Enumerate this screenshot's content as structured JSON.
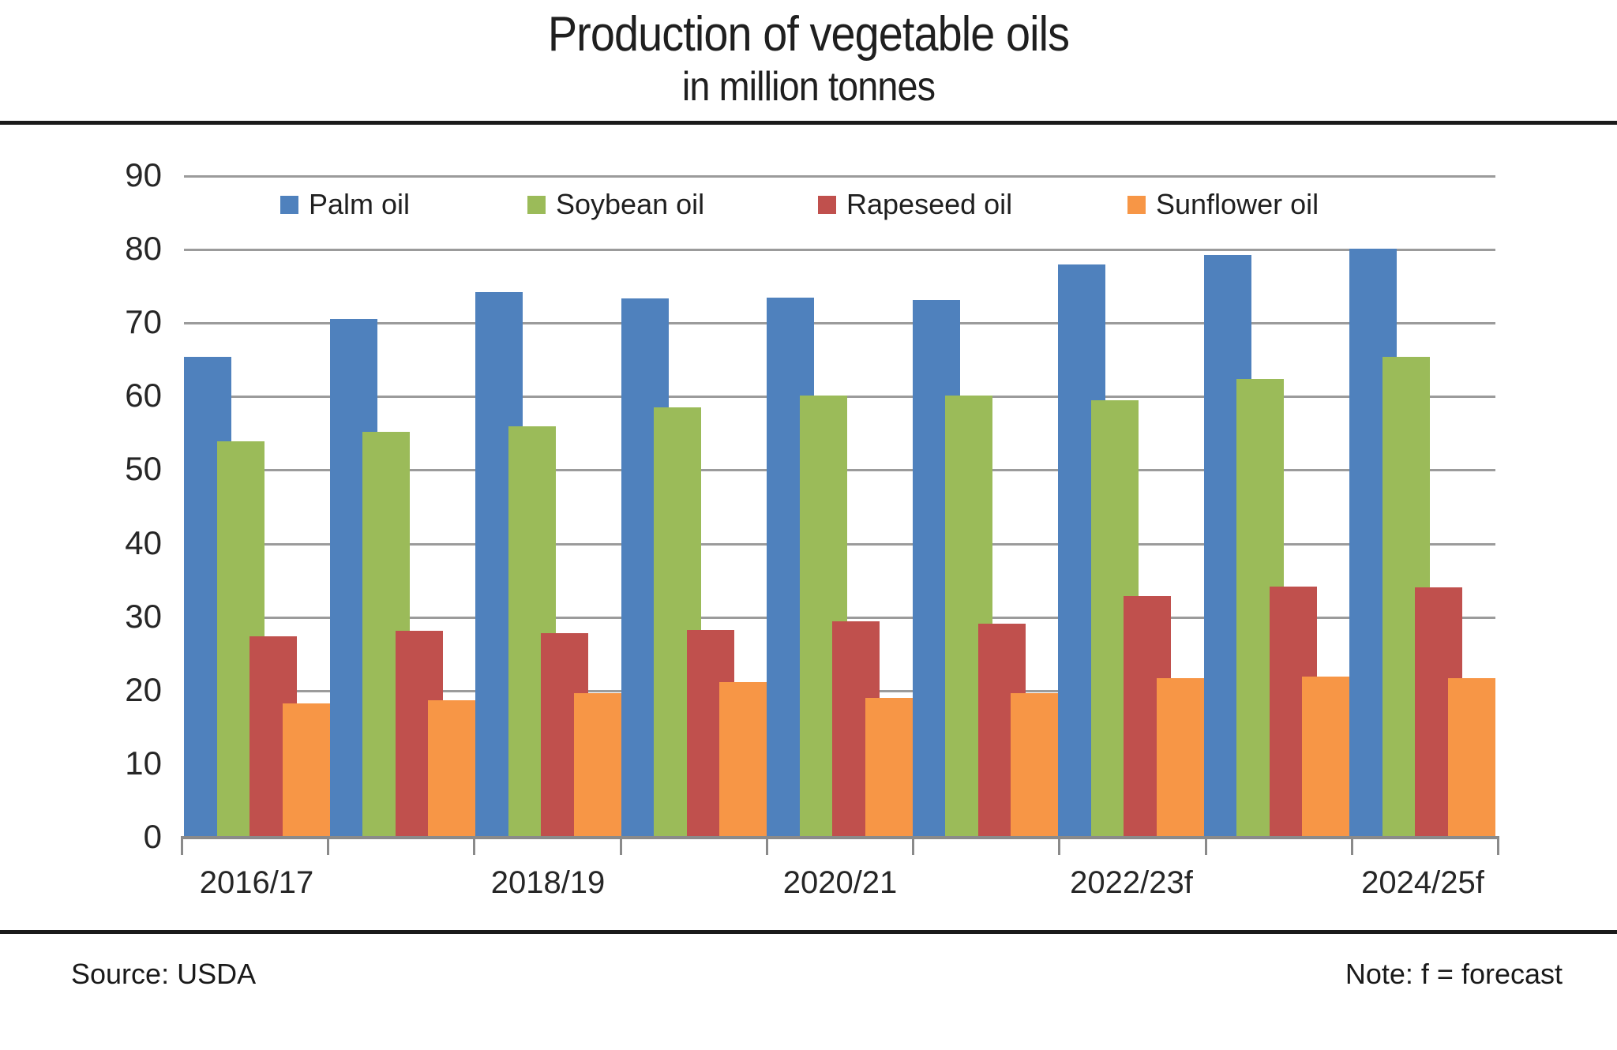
{
  "page": {
    "title": "Production of vegetable oils",
    "subtitle": "in million tonnes",
    "footer_source": "Source: USDA",
    "footer_note": "Note: f = forecast"
  },
  "legend": {
    "items": [
      {
        "label": "Palm oil",
        "color": "#4F81BD"
      },
      {
        "label": "Soybean oil",
        "color": "#9BBB59"
      },
      {
        "label": "Rapeseed oil",
        "color": "#C0504D"
      },
      {
        "label": "Sunflower oil",
        "color": "#F79646"
      }
    ]
  },
  "colors": {
    "gridline": "#9b9b9b",
    "axis": "#8a8a8a",
    "separator": "#1a1a1a",
    "palm": "#4F81BD",
    "soybean": "#9BBB59",
    "rapeseed": "#C0504D",
    "sunflower": "#F79646"
  },
  "chart_data": {
    "type": "bar",
    "title": "Production of vegetable oils",
    "subtitle": "in million tonnes",
    "unit": "million tonnes",
    "categories": [
      "2016/17",
      "",
      "2018/19",
      "",
      "2020/21",
      "",
      "2022/23f",
      "",
      "2024/25f"
    ],
    "x_tick_labels_shown": [
      "2016/17",
      "2018/19",
      "2020/21",
      "2022/23f",
      "2024/25f"
    ],
    "x_label_group_indices": [
      0,
      2,
      4,
      6,
      8
    ],
    "series": [
      {
        "name": "Palm oil",
        "color": "#4F81BD",
        "values": [
          65.3,
          70.5,
          74.1,
          73.2,
          73.3,
          73.0,
          77.9,
          79.2,
          80.0
        ]
      },
      {
        "name": "Soybean oil",
        "color": "#9BBB59",
        "values": [
          53.8,
          55.1,
          55.9,
          58.4,
          60.0,
          60.0,
          59.4,
          62.3,
          65.3
        ]
      },
      {
        "name": "Rapeseed oil",
        "color": "#C0504D",
        "values": [
          27.3,
          28.0,
          27.7,
          28.1,
          29.3,
          29.0,
          32.8,
          34.0,
          33.9
        ]
      },
      {
        "name": "Sunflower oil",
        "color": "#F79646",
        "values": [
          18.2,
          18.6,
          19.6,
          21.1,
          18.9,
          19.6,
          21.6,
          21.8,
          21.6
        ]
      }
    ],
    "ylim": [
      0,
      90
    ],
    "y_ticks": [
      0,
      10,
      20,
      30,
      40,
      50,
      60,
      70,
      80,
      90
    ],
    "grid": true,
    "legend_position": "top-inside",
    "series_overlap_fraction": 0.31,
    "note": "f = forecast",
    "source": "USDA"
  }
}
